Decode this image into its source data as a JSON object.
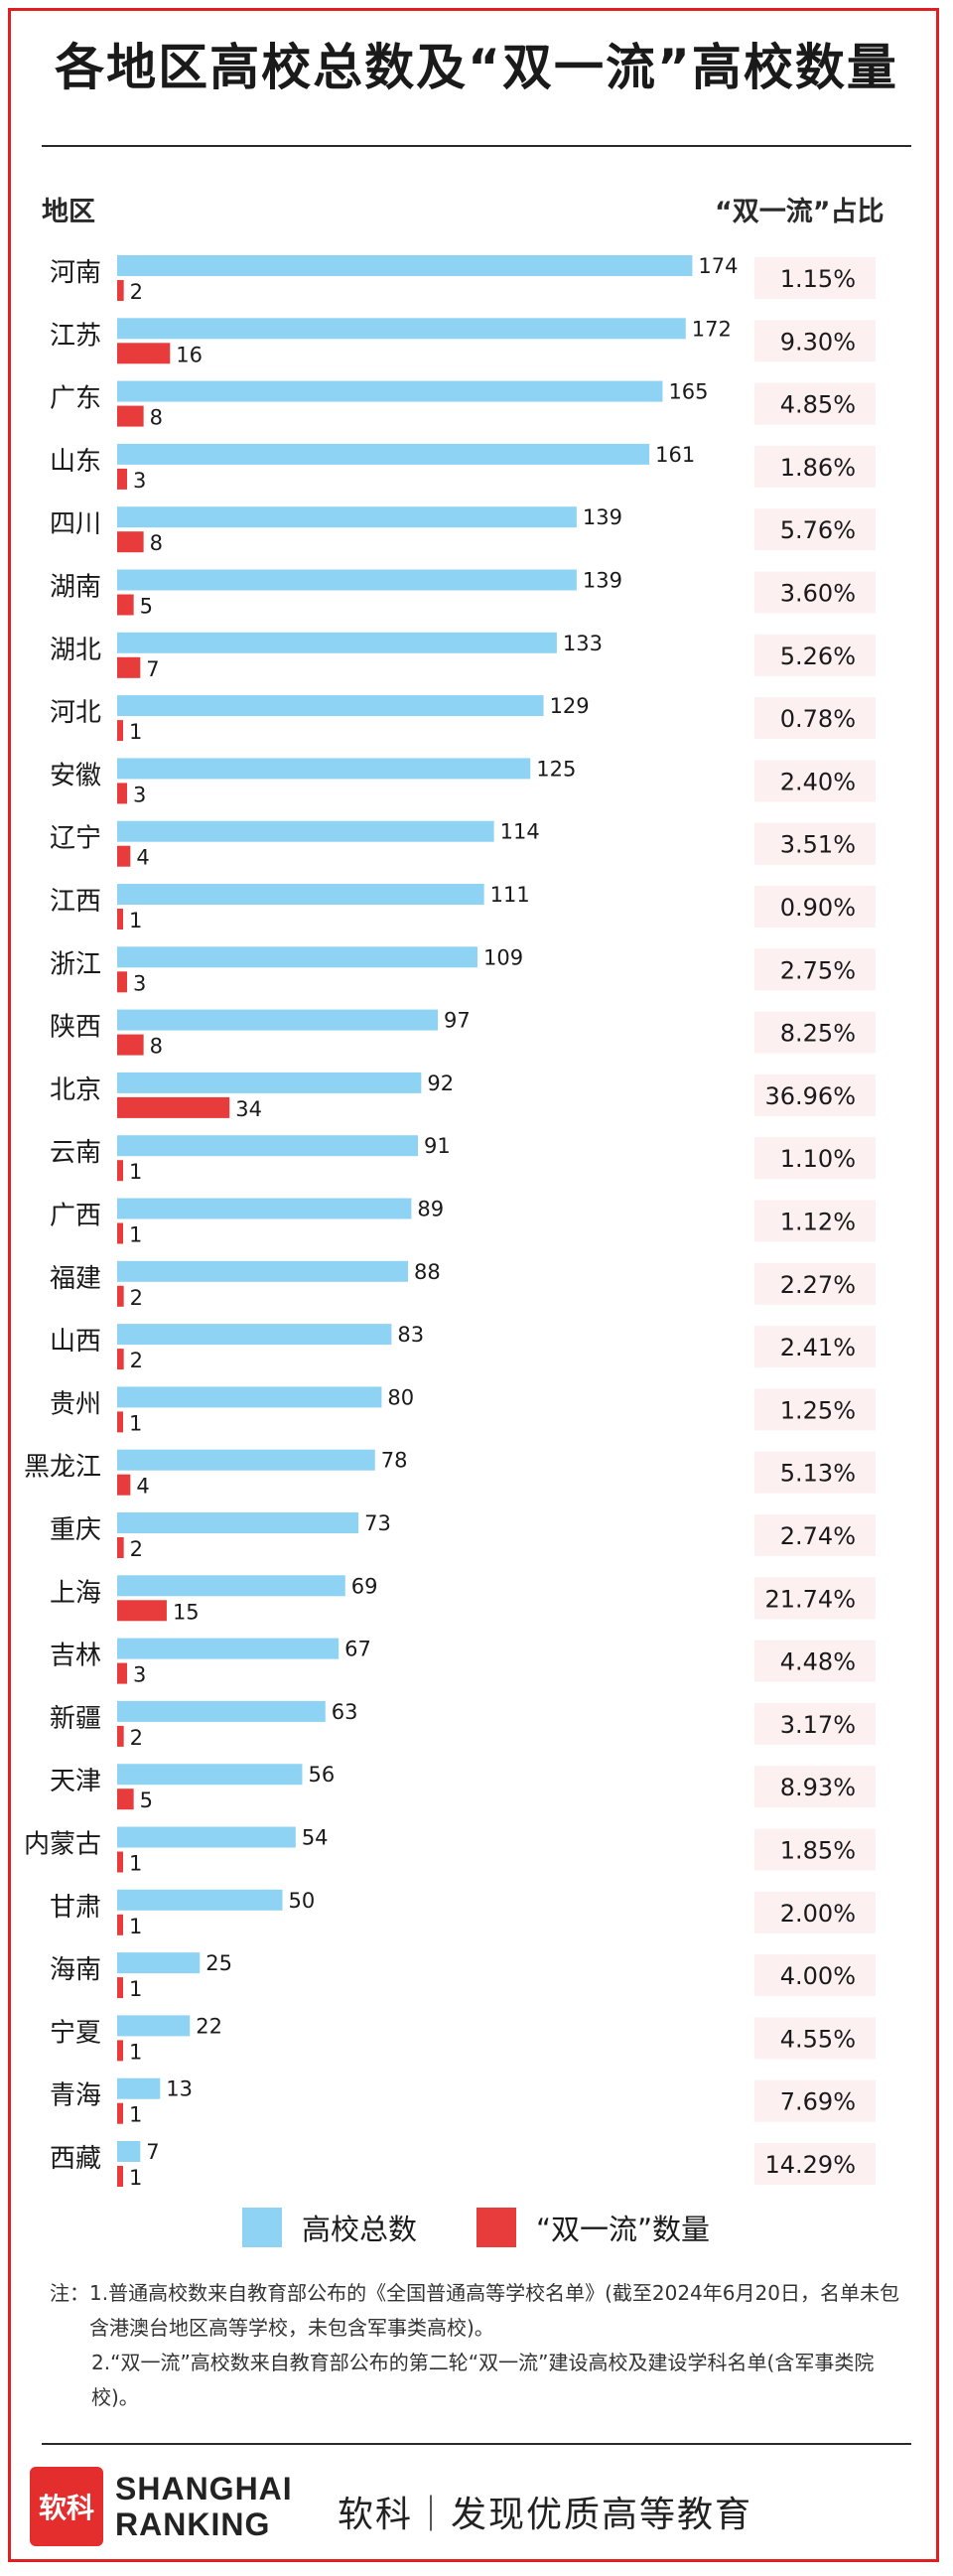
{
  "title": "各地区高校总数及“双一流”高校数量",
  "headers": {
    "region": "地区",
    "share": "“双一流”占比"
  },
  "colors": {
    "total": "#8fd3f4",
    "dfc": "#e83c3c",
    "share_bg": "#fdf0f0",
    "frame": "#e02020"
  },
  "chart_data": {
    "type": "bar",
    "orientation": "horizontal",
    "categories": [
      "河南",
      "江苏",
      "广东",
      "山东",
      "四川",
      "湖南",
      "湖北",
      "河北",
      "安徽",
      "辽宁",
      "江西",
      "浙江",
      "陕西",
      "北京",
      "云南",
      "广西",
      "福建",
      "山西",
      "贵州",
      "黑龙江",
      "重庆",
      "上海",
      "吉林",
      "新疆",
      "天津",
      "内蒙古",
      "甘肃",
      "海南",
      "宁夏",
      "青海",
      "西藏"
    ],
    "series": [
      {
        "name": "高校总数",
        "values": [
          174,
          172,
          165,
          161,
          139,
          139,
          133,
          129,
          125,
          114,
          111,
          109,
          97,
          92,
          91,
          89,
          88,
          83,
          80,
          78,
          73,
          69,
          67,
          63,
          56,
          54,
          50,
          25,
          22,
          13,
          7
        ]
      },
      {
        "name": "“双一流”数量",
        "values": [
          2,
          16,
          8,
          3,
          8,
          5,
          7,
          1,
          3,
          4,
          1,
          3,
          8,
          34,
          1,
          1,
          2,
          2,
          1,
          4,
          2,
          15,
          3,
          2,
          5,
          1,
          1,
          1,
          1,
          1,
          1
        ]
      }
    ],
    "share_labels": [
      "1.15%",
      "9.30%",
      "4.85%",
      "1.86%",
      "5.76%",
      "3.60%",
      "5.26%",
      "0.78%",
      "2.40%",
      "3.51%",
      "0.90%",
      "2.75%",
      "8.25%",
      "36.96%",
      "1.10%",
      "1.12%",
      "2.27%",
      "2.41%",
      "1.25%",
      "5.13%",
      "2.74%",
      "21.74%",
      "4.48%",
      "3.17%",
      "8.93%",
      "1.85%",
      "2.00%",
      "4.00%",
      "4.55%",
      "7.69%",
      "14.29%"
    ],
    "xlim": [
      0,
      174
    ],
    "legend": "bottom"
  },
  "legend": {
    "total": "高校总数",
    "dfc": "“双一流”数量"
  },
  "notes": [
    {
      "key": "注：",
      "text": "1.普通高校数来自教育部公布的《全国普通高等学校名单》(截至2024年6月20日，名单未包含港澳台地区高等学校，未包含军事类高校)。"
    },
    {
      "key": "",
      "text": "2.“双一流”高校数来自教育部公布的第二轮“双一流”建设高校及建设学科名单(含军事类院校)。"
    }
  ],
  "footer": {
    "logo_mark": "软科",
    "logo_line1": "SHANGHAI",
    "logo_line2": "RANKING",
    "slogan": "软科｜发现优质高等教育"
  }
}
